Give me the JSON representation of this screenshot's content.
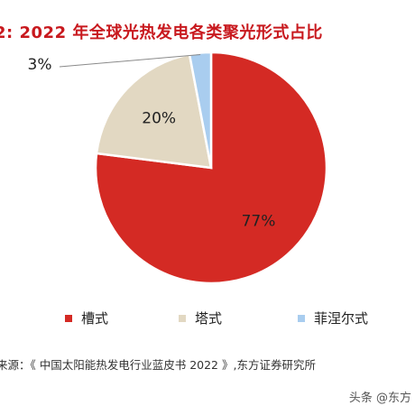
{
  "title": "2: 2022 年全球光热发电各类聚光形式占比",
  "chart_data": {
    "type": "pie",
    "slices": [
      {
        "label": "槽式",
        "value": 77,
        "display": "77%",
        "color": "#d42a24"
      },
      {
        "label": "塔式",
        "value": 20,
        "display": "20%",
        "color": "#e2d8c2"
      },
      {
        "label": "菲涅尔式",
        "value": 3,
        "display": "3%",
        "color": "#a9cdef"
      }
    ]
  },
  "legend": [
    {
      "label": "槽式",
      "color": "#d42a24"
    },
    {
      "label": "塔式",
      "color": "#e2d8c2"
    },
    {
      "label": "菲涅尔式",
      "color": "#a9cdef"
    }
  ],
  "source": "来源：《 中国太阳能热发电行业蓝皮书 2022 》,东方证券研究所",
  "watermark": "头条 @东方"
}
